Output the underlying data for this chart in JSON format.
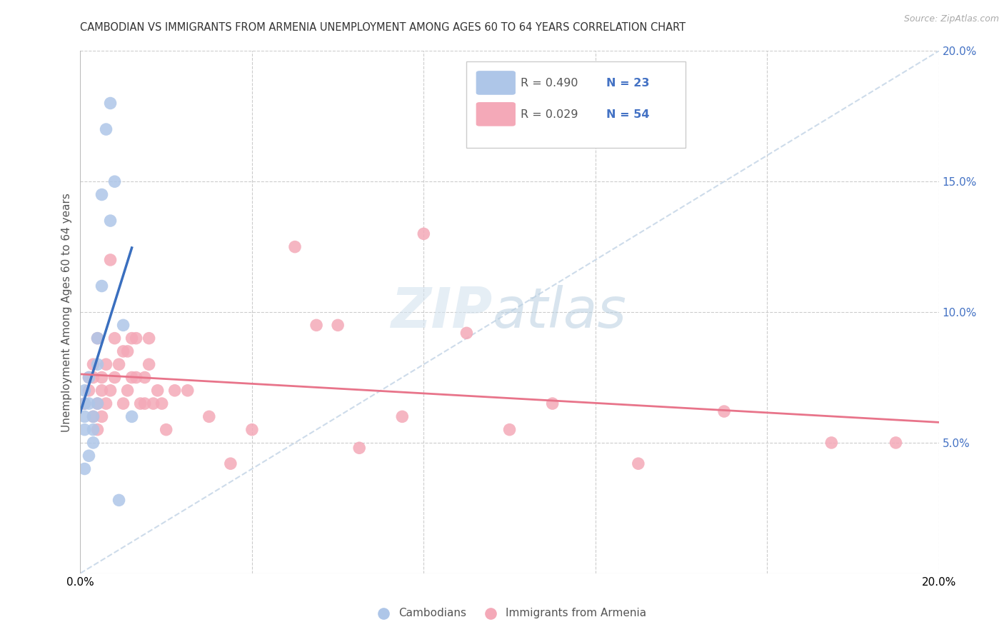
{
  "title": "CAMBODIAN VS IMMIGRANTS FROM ARMENIA UNEMPLOYMENT AMONG AGES 60 TO 64 YEARS CORRELATION CHART",
  "source": "Source: ZipAtlas.com",
  "ylabel": "Unemployment Among Ages 60 to 64 years",
  "xlim": [
    0.0,
    0.2
  ],
  "ylim": [
    0.0,
    0.2
  ],
  "background_color": "#ffffff",
  "grid_color": "#cccccc",
  "cambodian_color": "#aec6e8",
  "armenian_color": "#f4a9b8",
  "cambodian_line_color": "#3a6fbf",
  "armenian_line_color": "#e8748a",
  "diagonal_color": "#c8d8e8",
  "legend_R_cambodian": "R = 0.490",
  "legend_N_cambodian": "N = 23",
  "legend_R_armenian": "R = 0.029",
  "legend_N_armenian": "N = 54",
  "legend_color": "#4472c4",
  "legend_R_color": "#555555",
  "watermark_zip_color": "#c8d8e8",
  "watermark_atlas_color": "#b0cce0",
  "cambodian_x": [
    0.001,
    0.001,
    0.001,
    0.001,
    0.001,
    0.002,
    0.002,
    0.002,
    0.003,
    0.003,
    0.003,
    0.004,
    0.004,
    0.004,
    0.005,
    0.005,
    0.006,
    0.007,
    0.007,
    0.008,
    0.009,
    0.01,
    0.012
  ],
  "cambodian_y": [
    0.04,
    0.055,
    0.06,
    0.065,
    0.07,
    0.045,
    0.065,
    0.075,
    0.05,
    0.055,
    0.06,
    0.065,
    0.08,
    0.09,
    0.11,
    0.145,
    0.17,
    0.18,
    0.135,
    0.15,
    0.028,
    0.095,
    0.06
  ],
  "armenian_x": [
    0.001,
    0.002,
    0.002,
    0.003,
    0.003,
    0.003,
    0.004,
    0.004,
    0.004,
    0.005,
    0.005,
    0.005,
    0.006,
    0.006,
    0.007,
    0.007,
    0.008,
    0.008,
    0.009,
    0.01,
    0.01,
    0.011,
    0.011,
    0.012,
    0.012,
    0.013,
    0.013,
    0.014,
    0.015,
    0.015,
    0.016,
    0.016,
    0.017,
    0.018,
    0.019,
    0.02,
    0.022,
    0.025,
    0.03,
    0.035,
    0.04,
    0.05,
    0.055,
    0.06,
    0.065,
    0.075,
    0.08,
    0.09,
    0.1,
    0.11,
    0.13,
    0.15,
    0.175,
    0.19
  ],
  "armenian_y": [
    0.065,
    0.07,
    0.075,
    0.06,
    0.075,
    0.08,
    0.055,
    0.065,
    0.09,
    0.06,
    0.07,
    0.075,
    0.065,
    0.08,
    0.07,
    0.12,
    0.075,
    0.09,
    0.08,
    0.065,
    0.085,
    0.07,
    0.085,
    0.075,
    0.09,
    0.075,
    0.09,
    0.065,
    0.065,
    0.075,
    0.08,
    0.09,
    0.065,
    0.07,
    0.065,
    0.055,
    0.07,
    0.07,
    0.06,
    0.042,
    0.055,
    0.125,
    0.095,
    0.095,
    0.048,
    0.06,
    0.13,
    0.092,
    0.055,
    0.065,
    0.042,
    0.062,
    0.05,
    0.05
  ]
}
